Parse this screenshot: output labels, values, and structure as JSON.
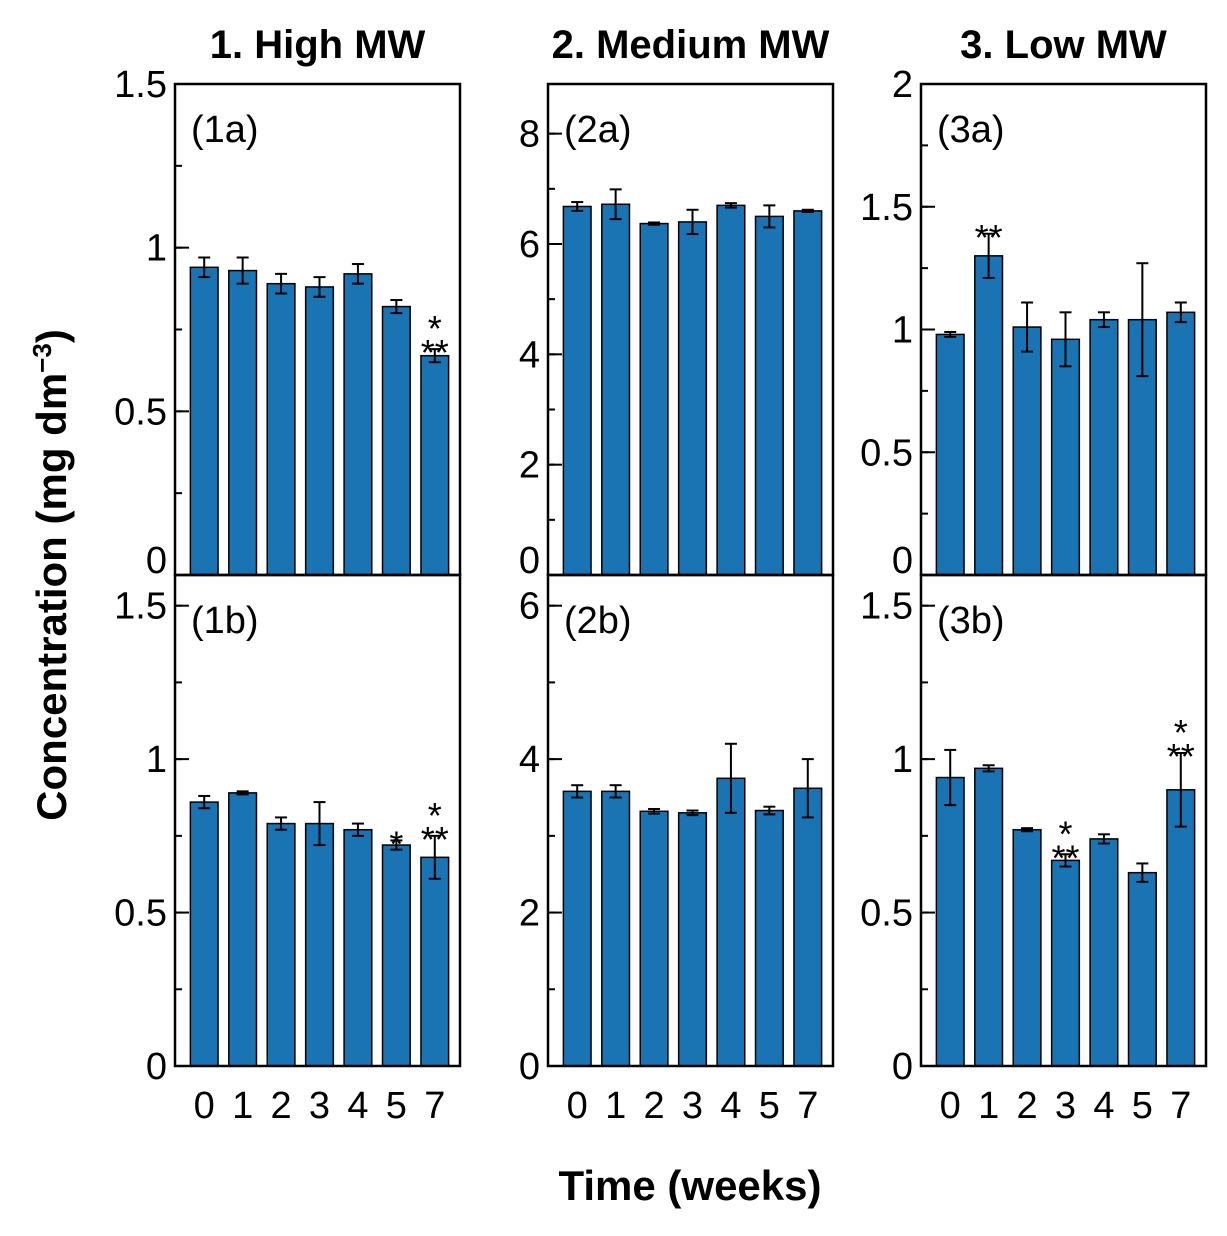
{
  "x_axis_title": "Time (weeks)",
  "y_axis_title": "Concentration (mg dm",
  "y_axis_title_sup": "−3",
  "y_axis_title_close": ")",
  "chart_data": [
    {
      "id": "1a",
      "type": "bar",
      "column_title": "1. High MW",
      "panel_label": "(1a)",
      "categories": [
        "0",
        "1",
        "2",
        "3",
        "4",
        "5",
        "7"
      ],
      "values": [
        0.94,
        0.93,
        0.89,
        0.88,
        0.92,
        0.82,
        0.67
      ],
      "errors": [
        0.03,
        0.04,
        0.03,
        0.03,
        0.03,
        0.02,
        0.02
      ],
      "ylim": [
        0,
        1.5
      ],
      "yticks": [
        0,
        0.5,
        1,
        1.5
      ],
      "ytick_labels": [
        "0",
        "0.5",
        "1",
        "1.5"
      ],
      "minor_step": 0.25,
      "annotations": [
        {
          "index": 6,
          "text": [
            "*",
            "**"
          ]
        }
      ]
    },
    {
      "id": "2a",
      "type": "bar",
      "column_title": "2. Medium MW",
      "panel_label": "(2a)",
      "categories": [
        "0",
        "1",
        "2",
        "3",
        "4",
        "5",
        "7"
      ],
      "values": [
        6.68,
        6.72,
        6.37,
        6.4,
        6.7,
        6.5,
        6.6
      ],
      "errors": [
        0.08,
        0.27,
        0.02,
        0.22,
        0.04,
        0.2,
        0.02
      ],
      "ylim": [
        0,
        8.9
      ],
      "yticks": [
        0,
        2,
        4,
        6,
        8
      ],
      "ytick_labels": [
        "0",
        "2",
        "4",
        "6",
        "8"
      ],
      "minor_step": 1,
      "annotations": []
    },
    {
      "id": "3a",
      "type": "bar",
      "column_title": "3. Low MW",
      "panel_label": "(3a)",
      "categories": [
        "0",
        "1",
        "2",
        "3",
        "4",
        "5",
        "7"
      ],
      "values": [
        0.98,
        1.3,
        1.01,
        0.96,
        1.04,
        1.04,
        1.07
      ],
      "errors": [
        0.01,
        0.09,
        0.1,
        0.11,
        0.03,
        0.23,
        0.04
      ],
      "ylim": [
        0,
        2
      ],
      "yticks": [
        0,
        0.5,
        1,
        1.5,
        2
      ],
      "ytick_labels": [
        "0",
        "0.5",
        "1",
        "1.5",
        "2"
      ],
      "minor_step": 0.25,
      "annotations": [
        {
          "index": 1,
          "text": [
            "**"
          ]
        }
      ]
    },
    {
      "id": "1b",
      "type": "bar",
      "panel_label": "(1b)",
      "categories": [
        "0",
        "1",
        "2",
        "3",
        "4",
        "5",
        "7"
      ],
      "values": [
        0.86,
        0.89,
        0.79,
        0.79,
        0.77,
        0.72,
        0.68
      ],
      "errors": [
        0.02,
        0.005,
        0.02,
        0.07,
        0.02,
        0.015,
        0.07
      ],
      "ylim": [
        0,
        1.6
      ],
      "yticks": [
        0,
        0.5,
        1,
        1.5
      ],
      "ytick_labels": [
        "0",
        "0.5",
        "1",
        "1.5"
      ],
      "minor_step": 0.25,
      "annotations": [
        {
          "index": 5,
          "text": [
            "*"
          ]
        },
        {
          "index": 6,
          "text": [
            "*",
            "**"
          ]
        }
      ]
    },
    {
      "id": "2b",
      "type": "bar",
      "panel_label": "(2b)",
      "categories": [
        "0",
        "1",
        "2",
        "3",
        "4",
        "5",
        "7"
      ],
      "values": [
        3.58,
        3.58,
        3.32,
        3.3,
        3.75,
        3.33,
        3.62
      ],
      "errors": [
        0.08,
        0.08,
        0.03,
        0.03,
        0.45,
        0.05,
        0.38
      ],
      "ylim": [
        0,
        6.4
      ],
      "yticks": [
        0,
        2,
        4,
        6
      ],
      "ytick_labels": [
        "0",
        "2",
        "4",
        "6"
      ],
      "minor_step": 1,
      "annotations": []
    },
    {
      "id": "3b",
      "type": "bar",
      "panel_label": "(3b)",
      "categories": [
        "0",
        "1",
        "2",
        "3",
        "4",
        "5",
        "7"
      ],
      "values": [
        0.94,
        0.97,
        0.77,
        0.67,
        0.74,
        0.63,
        0.9
      ],
      "errors": [
        0.09,
        0.01,
        0.005,
        0.02,
        0.015,
        0.03,
        0.12
      ],
      "ylim": [
        0,
        1.6
      ],
      "yticks": [
        0,
        0.5,
        1,
        1.5
      ],
      "ytick_labels": [
        "0",
        "0.5",
        "1",
        "1.5"
      ],
      "minor_step": 0.25,
      "annotations": [
        {
          "index": 3,
          "text": [
            "*",
            "**"
          ]
        },
        {
          "index": 6,
          "text": [
            "*",
            "**"
          ]
        }
      ]
    }
  ]
}
